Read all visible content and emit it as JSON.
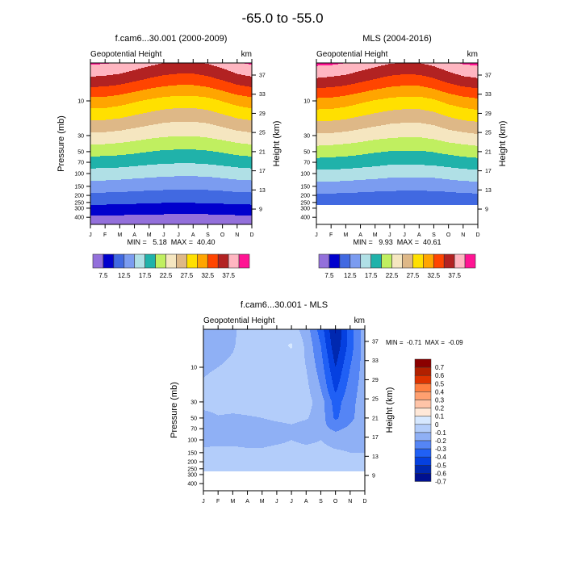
{
  "title": "-65.0 to -55.0",
  "chart_data": [
    {
      "type": "heatmap",
      "title": "f.cam6...30.001 (2000-2009)",
      "left_label": "Geopotential Height",
      "right_label": "km",
      "ylabel": "Pressure (mb)",
      "ylabel_right": "Height (km)",
      "stats": "MIN =   5.18  MAX =  40.40",
      "x": [
        "J",
        "F",
        "M",
        "A",
        "M",
        "J",
        "J",
        "A",
        "S",
        "O",
        "N",
        "D"
      ],
      "pressure": [
        3,
        5,
        10,
        20,
        30,
        50,
        70,
        100,
        150,
        200,
        250,
        300,
        500
      ],
      "values": [
        [
          40.4,
          40.2,
          39.8,
          39.0,
          38.2,
          37.5,
          37.2,
          37.2,
          37.7,
          38.6,
          39.8,
          40.4
        ],
        [
          37.0,
          36.8,
          36.4,
          35.6,
          34.8,
          34.2,
          33.9,
          33.9,
          34.4,
          35.3,
          36.4,
          37.0
        ],
        [
          31.6,
          31.5,
          31.0,
          30.3,
          29.6,
          29.1,
          28.8,
          28.8,
          29.2,
          30.1,
          31.0,
          31.6
        ],
        [
          27.0,
          26.9,
          26.6,
          26.0,
          25.5,
          25.0,
          24.8,
          24.8,
          25.1,
          25.8,
          26.6,
          27.0
        ],
        [
          24.4,
          24.3,
          24.0,
          23.6,
          23.1,
          22.8,
          22.6,
          22.6,
          22.9,
          23.4,
          24.0,
          24.4
        ],
        [
          21.0,
          20.9,
          20.7,
          20.4,
          20.0,
          19.7,
          19.6,
          19.6,
          19.8,
          20.2,
          20.7,
          21.0
        ],
        [
          18.8,
          18.7,
          18.6,
          18.3,
          18.0,
          17.8,
          17.7,
          17.7,
          17.9,
          18.2,
          18.6,
          18.8
        ],
        [
          16.4,
          16.4,
          16.2,
          16.0,
          15.8,
          15.6,
          15.5,
          15.5,
          15.6,
          15.9,
          16.2,
          16.4
        ],
        [
          13.8,
          13.8,
          13.7,
          13.5,
          13.3,
          13.2,
          13.1,
          13.1,
          13.2,
          13.4,
          13.7,
          13.8
        ],
        [
          11.9,
          11.9,
          11.8,
          11.7,
          11.6,
          11.5,
          11.4,
          11.4,
          11.5,
          11.6,
          11.8,
          11.9
        ],
        [
          10.5,
          10.5,
          10.4,
          10.3,
          10.2,
          10.1,
          10.1,
          10.1,
          10.2,
          10.3,
          10.4,
          10.5
        ],
        [
          9.2,
          9.2,
          9.1,
          9.1,
          9.0,
          8.9,
          8.9,
          8.9,
          8.9,
          9.0,
          9.1,
          9.2
        ],
        [
          5.4,
          5.4,
          5.4,
          5.3,
          5.3,
          5.2,
          5.2,
          5.2,
          5.2,
          5.3,
          5.4,
          5.4
        ]
      ],
      "y_ticks": [
        "10",
        "30",
        "50",
        "70",
        "100",
        "150",
        "200",
        "250",
        "300",
        "400"
      ],
      "y_right_ticks": [
        "37",
        "33",
        "29",
        "25",
        "21",
        "17",
        "13",
        "9"
      ],
      "levels": [
        7.5,
        10,
        12.5,
        15,
        17.5,
        20,
        22.5,
        25,
        27.5,
        30,
        32.5,
        35,
        37.5,
        40
      ],
      "colors": [
        "#9370db",
        "#0000cd",
        "#4169e1",
        "#7b9cf0",
        "#b0e0e6",
        "#20b2aa",
        "#c0ef60",
        "#f5e6c0",
        "#deb887",
        "#ffe000",
        "#ffa500",
        "#ff4500",
        "#b22222",
        "#ffb6c1",
        "#ff1493"
      ],
      "colorbar_labels": [
        "7.5",
        "12.5",
        "17.5",
        "22.5",
        "27.5",
        "32.5",
        "37.5"
      ]
    },
    {
      "type": "heatmap",
      "title": "MLS (2004-2016)",
      "left_label": "Geopotential Height",
      "right_label": "km",
      "ylabel_right": "Height (km)",
      "stats": "MIN =   9.93  MAX =  40.61",
      "x": [
        "J",
        "F",
        "M",
        "A",
        "M",
        "J",
        "J",
        "A",
        "S",
        "O",
        "N",
        "D"
      ],
      "pressure": [
        3,
        5,
        10,
        20,
        30,
        50,
        70,
        100,
        150,
        200,
        250,
        300,
        500
      ],
      "values": [
        [
          40.6,
          40.5,
          40.0,
          39.2,
          38.4,
          37.7,
          37.4,
          37.5,
          38.2,
          39.3,
          40.3,
          40.6
        ],
        [
          37.3,
          37.0,
          36.6,
          35.8,
          35.0,
          34.3,
          34.0,
          34.1,
          34.8,
          36.0,
          36.9,
          37.3
        ],
        [
          31.8,
          31.7,
          31.2,
          30.5,
          29.8,
          29.3,
          29.0,
          29.0,
          29.6,
          30.7,
          31.4,
          31.9
        ],
        [
          27.2,
          27.1,
          26.8,
          26.2,
          25.7,
          25.2,
          25.0,
          25.0,
          25.4,
          26.3,
          27.0,
          27.3
        ],
        [
          24.6,
          24.5,
          24.2,
          23.8,
          23.3,
          23.0,
          22.8,
          22.8,
          23.2,
          23.9,
          24.3,
          24.7
        ],
        [
          21.3,
          21.1,
          20.9,
          20.6,
          20.2,
          19.9,
          19.8,
          19.8,
          20.1,
          20.6,
          21.0,
          21.3
        ],
        [
          19.1,
          19.0,
          18.9,
          18.6,
          18.3,
          18.0,
          17.9,
          18.0,
          18.2,
          18.5,
          18.9,
          19.1
        ],
        [
          16.6,
          16.7,
          16.5,
          16.3,
          16.1,
          15.8,
          15.7,
          15.7,
          15.8,
          16.2,
          16.5,
          16.7
        ],
        [
          14.0,
          14.0,
          13.9,
          13.7,
          13.5,
          13.4,
          13.3,
          13.3,
          13.4,
          13.6,
          13.9,
          14.0
        ],
        [
          12.1,
          12.1,
          12.0,
          11.9,
          11.8,
          11.7,
          11.6,
          11.6,
          11.7,
          11.8,
          12.0,
          12.1
        ],
        [
          10.7,
          10.7,
          10.6,
          10.5,
          10.4,
          10.3,
          10.3,
          10.3,
          10.4,
          10.5,
          10.6,
          10.7
        ],
        [
          null,
          null,
          null,
          null,
          null,
          null,
          null,
          null,
          null,
          null,
          null,
          null
        ],
        [
          null,
          null,
          null,
          null,
          null,
          null,
          null,
          null,
          null,
          null,
          null,
          null
        ]
      ],
      "y_ticks": [
        "10",
        "30",
        "50",
        "70",
        "100",
        "150",
        "200",
        "250",
        "300",
        "400"
      ],
      "y_right_ticks": [
        "37",
        "33",
        "29",
        "25",
        "21",
        "17",
        "13",
        "9"
      ],
      "levels": [
        7.5,
        10,
        12.5,
        15,
        17.5,
        20,
        22.5,
        25,
        27.5,
        30,
        32.5,
        35,
        37.5,
        40
      ],
      "colors": [
        "#9370db",
        "#0000cd",
        "#4169e1",
        "#7b9cf0",
        "#b0e0e6",
        "#20b2aa",
        "#c0ef60",
        "#f5e6c0",
        "#deb887",
        "#ffe000",
        "#ffa500",
        "#ff4500",
        "#b22222",
        "#ffb6c1",
        "#ff1493"
      ],
      "colorbar_labels": [
        "7.5",
        "12.5",
        "17.5",
        "22.5",
        "27.5",
        "32.5",
        "37.5"
      ]
    },
    {
      "type": "heatmap",
      "title": "f.cam6...30.001 - MLS",
      "left_label": "Geopotential Height",
      "right_label": "km",
      "ylabel": "Pressure (mb)",
      "ylabel_right": "Height (km)",
      "stats": "MIN =  -0.71  MAX =  -0.09",
      "x": [
        "J",
        "F",
        "M",
        "A",
        "M",
        "J",
        "J",
        "A",
        "S",
        "O",
        "N",
        "D"
      ],
      "pressure": [
        3,
        5,
        10,
        20,
        30,
        50,
        70,
        100,
        150,
        200,
        250,
        300,
        500
      ],
      "values": [
        [
          -0.25,
          -0.25,
          -0.22,
          -0.15,
          -0.15,
          -0.15,
          -0.15,
          -0.25,
          -0.45,
          -0.71,
          -0.45,
          -0.25
        ],
        [
          -0.25,
          -0.24,
          -0.21,
          -0.15,
          -0.15,
          -0.13,
          -0.09,
          -0.22,
          -0.4,
          -0.68,
          -0.45,
          -0.25
        ],
        [
          -0.22,
          -0.2,
          -0.18,
          -0.15,
          -0.15,
          -0.15,
          -0.15,
          -0.2,
          -0.35,
          -0.6,
          -0.4,
          -0.25
        ],
        [
          -0.18,
          -0.15,
          -0.15,
          -0.15,
          -0.15,
          -0.15,
          -0.15,
          -0.17,
          -0.3,
          -0.52,
          -0.35,
          -0.25
        ],
        [
          -0.15,
          -0.15,
          -0.15,
          -0.15,
          -0.15,
          -0.15,
          -0.15,
          -0.16,
          -0.25,
          -0.45,
          -0.33,
          -0.25
        ],
        [
          -0.25,
          -0.21,
          -0.22,
          -0.21,
          -0.2,
          -0.18,
          -0.17,
          -0.19,
          -0.25,
          -0.42,
          -0.32,
          -0.25
        ],
        [
          -0.25,
          -0.25,
          -0.25,
          -0.25,
          -0.25,
          -0.24,
          -0.22,
          -0.25,
          -0.27,
          -0.32,
          -0.28,
          -0.25
        ],
        [
          -0.23,
          -0.25,
          -0.25,
          -0.25,
          -0.25,
          -0.23,
          -0.2,
          -0.23,
          -0.2,
          -0.25,
          -0.25,
          -0.25
        ],
        [
          -0.18,
          -0.15,
          -0.15,
          -0.17,
          -0.17,
          -0.15,
          -0.15,
          -0.15,
          -0.16,
          -0.18,
          -0.2,
          -0.2
        ],
        [
          -0.15,
          -0.15,
          -0.15,
          -0.15,
          -0.15,
          -0.15,
          -0.15,
          -0.15,
          -0.15,
          -0.15,
          -0.15,
          -0.15
        ],
        [
          -0.15,
          -0.15,
          -0.15,
          -0.15,
          -0.15,
          -0.15,
          -0.15,
          -0.15,
          -0.15,
          -0.15,
          -0.15,
          -0.15
        ],
        [
          null,
          null,
          null,
          null,
          null,
          null,
          null,
          null,
          null,
          null,
          null,
          null
        ],
        [
          null,
          null,
          null,
          null,
          null,
          null,
          null,
          null,
          null,
          null,
          null,
          null
        ]
      ],
      "y_ticks": [
        "10",
        "30",
        "50",
        "70",
        "100",
        "150",
        "200",
        "250",
        "300",
        "400"
      ],
      "y_right_ticks": [
        "37",
        "33",
        "29",
        "25",
        "21",
        "17",
        "13",
        "9"
      ],
      "levels": [
        -0.7,
        -0.6,
        -0.5,
        -0.4,
        -0.3,
        -0.2,
        -0.1,
        0,
        0.1,
        0.2,
        0.3,
        0.4,
        0.5,
        0.6,
        0.7
      ],
      "colors": [
        "#001090",
        "#0028b0",
        "#0540e0",
        "#2060f5",
        "#5585f5",
        "#8fb0f5",
        "#b3cdfa",
        "#d6e8ff",
        "#ffe8d8",
        "#ffc4a8",
        "#ffa070",
        "#ff7f40",
        "#dd3300",
        "#b22000",
        "#8b0000"
      ],
      "colorbar_labels": [
        "-0.7",
        "-0.6",
        "-0.5",
        "-0.4",
        "-0.3",
        "-0.2",
        "-0.1",
        "0",
        "0.1",
        "0.2",
        "0.3",
        "0.4",
        "0.5",
        "0.6",
        "0.7"
      ]
    }
  ]
}
